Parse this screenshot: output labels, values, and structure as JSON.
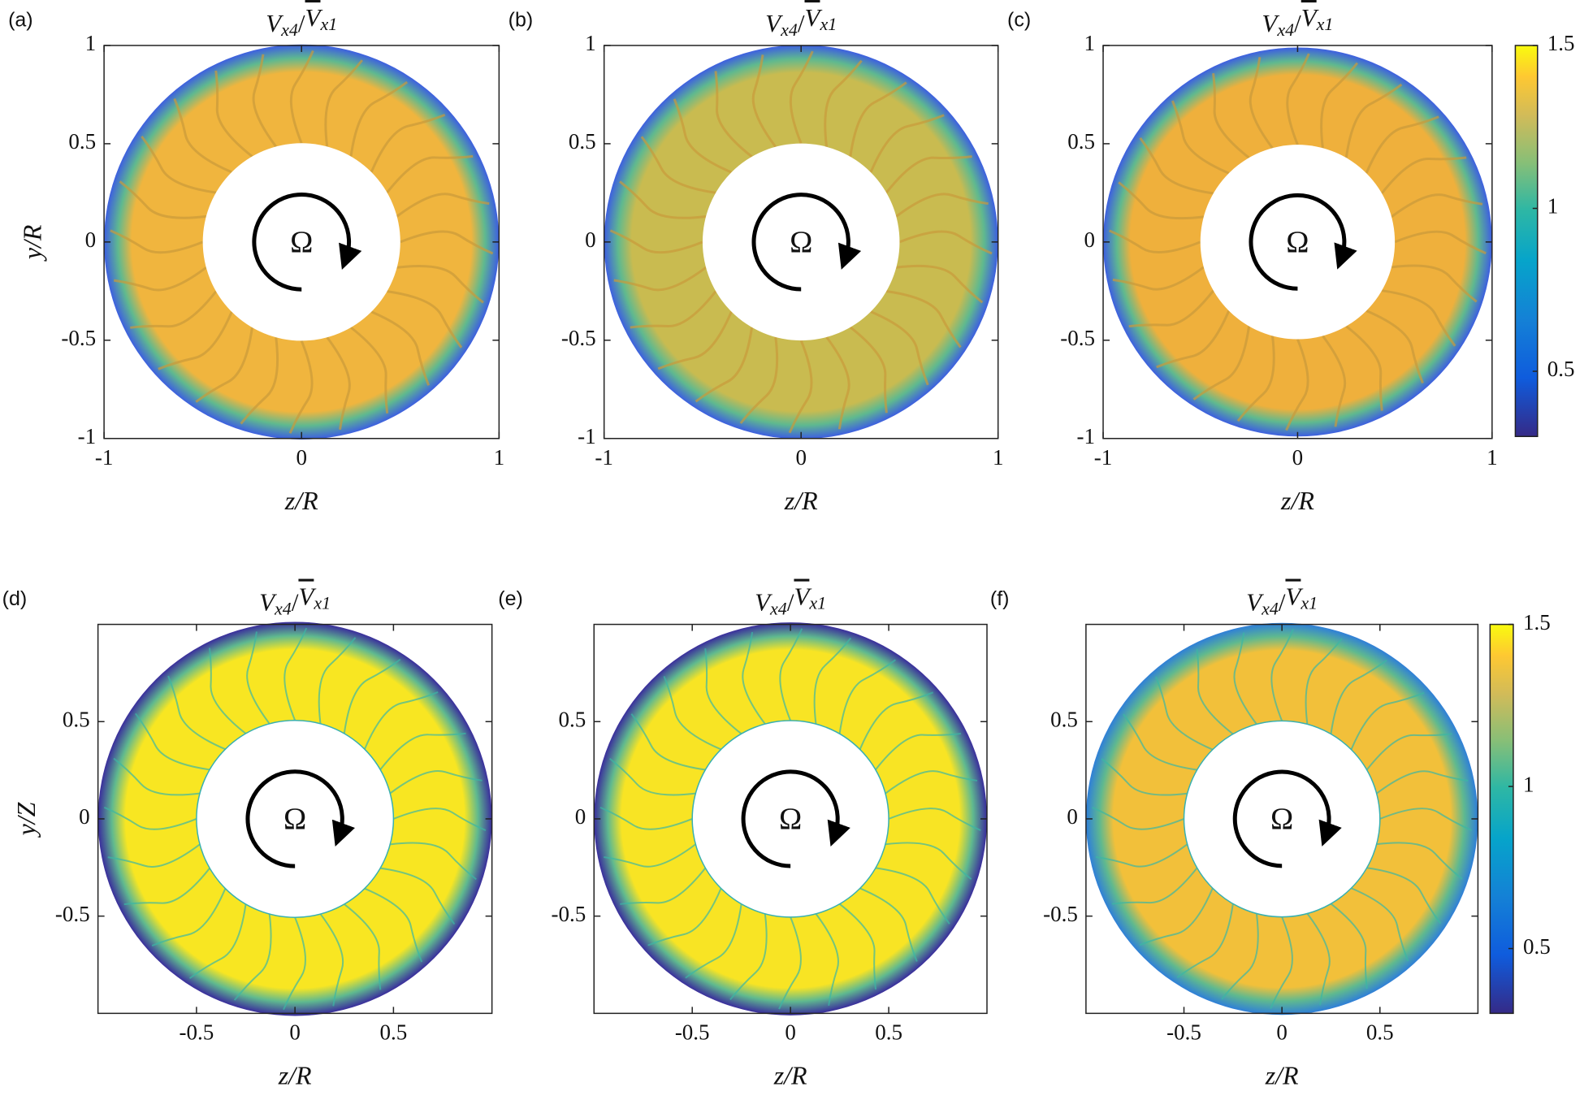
{
  "chart_data": [
    {
      "type": "contour",
      "panel_label": "(a)",
      "title": [
        "V",
        "x4",
        "/",
        "V",
        "x1"
      ],
      "xlabel": "z/R",
      "ylabel": "y/R",
      "annotation": "Ω",
      "xlim": [
        -1,
        1
      ],
      "ylim": [
        -1,
        1
      ],
      "xticks": [
        -1,
        0,
        1
      ],
      "yticks": [
        -1,
        -0.5,
        0,
        0.5,
        1
      ],
      "fill_color": "#f0b53e",
      "rim_color": "#3d5fe0"
    },
    {
      "type": "contour",
      "panel_label": "(b)",
      "title": [
        "V",
        "x4",
        "/",
        "V",
        "x1"
      ],
      "xlabel": "z/R",
      "annotation": "Ω",
      "xlim": [
        -1,
        1
      ],
      "ylim": [
        -1,
        1
      ],
      "xticks": [
        -1,
        0,
        1
      ],
      "yticks": [
        -1,
        -0.5,
        0,
        0.5,
        1
      ],
      "fill_color": "#c9bb50",
      "rim_color": "#3d5fe0"
    },
    {
      "type": "contour",
      "panel_label": "(c)",
      "title": [
        "V",
        "x4",
        "/",
        "V",
        "x1"
      ],
      "xlabel": "z/R",
      "annotation": "Ω",
      "xlim": [
        -1,
        1
      ],
      "ylim": [
        -1,
        1
      ],
      "xticks": [
        -1,
        0,
        1
      ],
      "yticks": [
        -1,
        -0.5,
        0,
        0.5,
        1
      ],
      "fill_color": "#efb03c",
      "rim_color": "#3d5fe0",
      "colorbar": {
        "clim": [
          0.3,
          1.5
        ],
        "ticks": [
          0.5,
          1,
          1.5
        ]
      }
    },
    {
      "type": "contour",
      "panel_label": "(d)",
      "title": [
        "V",
        "x4",
        "/",
        "V",
        "x1"
      ],
      "xlabel": "z/R",
      "ylabel": "y/Z",
      "annotation": "Ω",
      "xlim": [
        -1,
        1
      ],
      "ylim": [
        -1,
        1
      ],
      "xticks": [
        -0.5,
        0,
        0.5
      ],
      "yticks": [
        -0.5,
        0,
        0.5
      ],
      "fill_color": "#f8e622",
      "rim_color": "#3a2d9c"
    },
    {
      "type": "contour",
      "panel_label": "(e)",
      "title": [
        "V",
        "x4",
        "/",
        "V",
        "x1"
      ],
      "xlabel": "z/R",
      "annotation": "Ω",
      "xlim": [
        -1,
        1
      ],
      "ylim": [
        -1,
        1
      ],
      "xticks": [
        -0.5,
        0,
        0.5
      ],
      "yticks": [
        -0.5,
        0,
        0.5
      ],
      "fill_color": "#f8e424",
      "rim_color": "#3a2d9c"
    },
    {
      "type": "contour",
      "panel_label": "(f)",
      "title": [
        "V",
        "x4",
        "/",
        "V",
        "x1"
      ],
      "xlabel": "z/R",
      "annotation": "Ω",
      "xlim": [
        -1,
        1
      ],
      "ylim": [
        -1,
        1
      ],
      "xticks": [
        -0.5,
        0,
        0.5
      ],
      "yticks": [
        -0.5,
        0,
        0.5
      ],
      "fill_color": "#f2c03a",
      "rim_color": "#2f7fd8",
      "colorbar": {
        "clim": [
          0.3,
          1.5
        ],
        "ticks": [
          0.5,
          1,
          1.5
        ]
      }
    }
  ]
}
